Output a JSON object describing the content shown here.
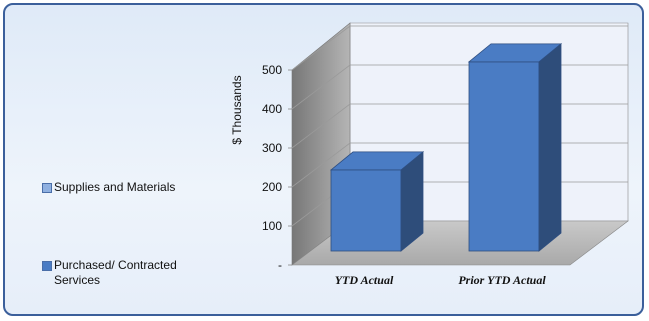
{
  "chart_data": {
    "type": "bar",
    "style": "3d-column",
    "categories": [
      "YTD Actual",
      "Prior YTD Actual"
    ],
    "series": [
      {
        "name": "Supplies and Materials",
        "values": [
          0,
          0
        ],
        "color": "#8fb0e0"
      },
      {
        "name": "Purchased/ Contracted Services",
        "values": [
          208,
          485
        ],
        "color": "#4a7cc4"
      }
    ],
    "ylabel": "$ Thousands",
    "yticks": [
      "-",
      "100",
      "200",
      "300",
      "400",
      "500"
    ],
    "ylim": [
      0,
      500
    ],
    "grid": true,
    "legend_position": "left"
  }
}
